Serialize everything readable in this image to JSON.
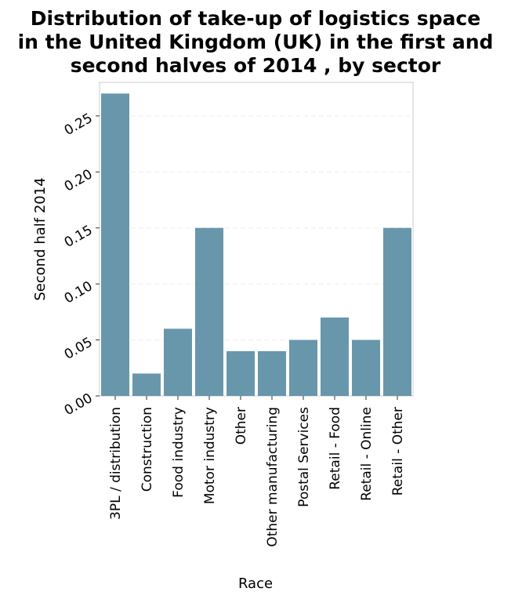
{
  "chart_data": {
    "type": "bar",
    "title_lines": [
      "Distribution of take-up of logistics space",
      "in the United Kingdom (UK) in the first and",
      "second halves of 2014 , by sector"
    ],
    "xlabel": "Race",
    "ylabel": "Second half 2014",
    "categories": [
      "3PL / distribution",
      "Construction",
      "Food industry",
      "Motor industry",
      "Other",
      "Other manufacturing",
      "Postal Services",
      "Retail - Food",
      "Retail - Online",
      "Retail - Other"
    ],
    "values": [
      0.27,
      0.02,
      0.06,
      0.15,
      0.04,
      0.04,
      0.05,
      0.07,
      0.05,
      0.15
    ],
    "yticks": [
      "0.00",
      "0.05",
      "0.10",
      "0.15",
      "0.20",
      "0.25"
    ],
    "ylim": [
      0,
      0.28
    ],
    "grid": true,
    "bar_color": "#6897ab"
  }
}
